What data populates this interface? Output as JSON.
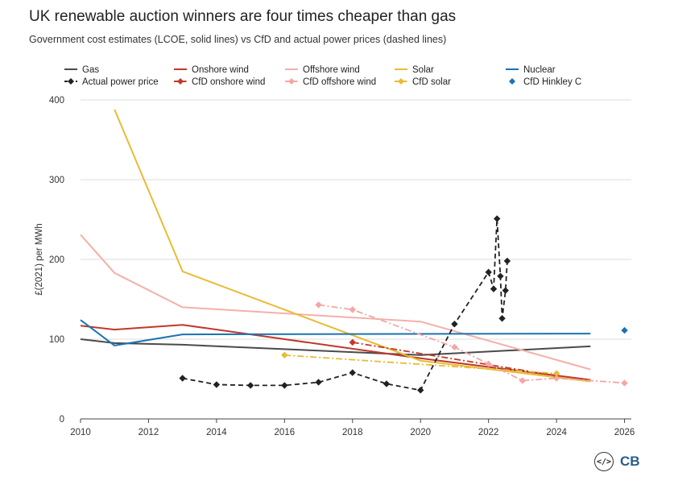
{
  "title": "UK renewable auction winners are four times cheaper than gas",
  "subtitle": "Government cost estimates (LCOE, solid lines) vs CfD and actual power prices (dashed lines)",
  "logo": {
    "code": "</>",
    "brand": "CB"
  },
  "chart_data": {
    "type": "line",
    "ylabel": "£(2021) per MWh",
    "xlim": [
      2010,
      2026.2
    ],
    "ylim": [
      0,
      400
    ],
    "xticks": [
      2010,
      2012,
      2014,
      2016,
      2018,
      2020,
      2022,
      2024,
      2026
    ],
    "yticks": [
      0,
      100,
      200,
      300,
      400
    ],
    "grid": "horizontal",
    "legend_position": "top",
    "series": [
      {
        "name": "Gas",
        "color": "#4a4a4a",
        "style": "solid",
        "marker": "none",
        "points": [
          [
            2010,
            100
          ],
          [
            2011,
            95
          ],
          [
            2013,
            93
          ],
          [
            2020,
            80
          ],
          [
            2025,
            91
          ]
        ]
      },
      {
        "name": "Onshore wind",
        "color": "#c0392b",
        "style": "solid",
        "marker": "none",
        "points": [
          [
            2010,
            117
          ],
          [
            2011,
            112
          ],
          [
            2013,
            118
          ],
          [
            2020,
            76
          ],
          [
            2025,
            49
          ]
        ]
      },
      {
        "name": "Offshore wind",
        "color": "#f4b0ab",
        "style": "solid",
        "marker": "none",
        "points": [
          [
            2010,
            231
          ],
          [
            2011,
            183
          ],
          [
            2013,
            140
          ],
          [
            2020,
            122
          ],
          [
            2025,
            62
          ]
        ]
      },
      {
        "name": "Solar",
        "color": "#e9bb35",
        "style": "solid",
        "marker": "none",
        "points": [
          [
            2011,
            388
          ],
          [
            2013,
            185
          ],
          [
            2020,
            73
          ],
          [
            2025,
            47
          ]
        ]
      },
      {
        "name": "Nuclear",
        "color": "#1a73b3",
        "style": "solid",
        "marker": "none",
        "points": [
          [
            2010,
            124
          ],
          [
            2011,
            92
          ],
          [
            2013,
            106
          ],
          [
            2025,
            107
          ]
        ]
      },
      {
        "name": "Actual power price",
        "color": "#222222",
        "style": "dashed",
        "marker": "diamond",
        "points": [
          [
            2013,
            51
          ],
          [
            2014,
            43
          ],
          [
            2015,
            42
          ],
          [
            2016,
            42
          ],
          [
            2017,
            46
          ],
          [
            2018,
            58
          ],
          [
            2019,
            44
          ],
          [
            2020,
            36
          ],
          [
            2021,
            119
          ],
          [
            2022,
            184
          ],
          [
            2022.15,
            163
          ],
          [
            2022.25,
            251
          ],
          [
            2022.35,
            179
          ],
          [
            2022.4,
            126
          ],
          [
            2022.5,
            161
          ],
          [
            2022.55,
            198
          ]
        ]
      },
      {
        "name": "CfD onshore wind",
        "color": "#c0392b",
        "style": "dashdot",
        "marker": "diamond",
        "points": [
          [
            2018,
            96
          ],
          [
            2024,
            54
          ]
        ]
      },
      {
        "name": "CfD offshore wind",
        "color": "#f4a7a3",
        "style": "dashdot",
        "marker": "diamond",
        "points": [
          [
            2017,
            143
          ],
          [
            2018,
            137
          ],
          [
            2021,
            90
          ],
          [
            2022,
            69
          ],
          [
            2023,
            48
          ],
          [
            2024,
            51
          ],
          [
            2026,
            45
          ]
        ]
      },
      {
        "name": "CfD solar",
        "color": "#e9bb35",
        "style": "dashdot",
        "marker": "diamond",
        "points": [
          [
            2016,
            80
          ],
          [
            2024,
            57
          ]
        ]
      },
      {
        "name": "CfD Hinkley C",
        "color": "#1a73b3",
        "style": "none",
        "marker": "diamond",
        "points": [
          [
            2026,
            111
          ]
        ]
      }
    ]
  }
}
